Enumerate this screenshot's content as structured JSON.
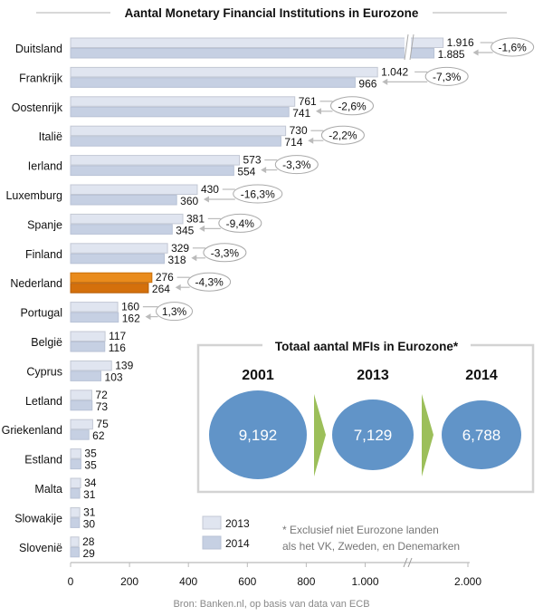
{
  "chart_data": {
    "type": "bar",
    "orientation": "horizontal",
    "title": "Aantal Monetary Financial Institutions in Eurozone",
    "categories": [
      "Duitsland",
      "Frankrijk",
      "Oostenrijk",
      "Italië",
      "Ierland",
      "Luxemburg",
      "Spanje",
      "Finland",
      "Nederland",
      "Portugal",
      "België",
      "Cyprus",
      "Letland",
      "Griekenland",
      "Estland",
      "Malta",
      "Slowakije",
      "Slovenië"
    ],
    "series": [
      {
        "name": "2013",
        "values": [
          1916,
          1042,
          761,
          730,
          573,
          430,
          381,
          329,
          276,
          160,
          117,
          139,
          72,
          75,
          35,
          34,
          31,
          28
        ],
        "value_labels": [
          "1.916",
          "1.042",
          "761",
          "730",
          "573",
          "430",
          "381",
          "329",
          "276",
          "160",
          "117",
          "139",
          "72",
          "75",
          "35",
          "34",
          "31",
          "28"
        ]
      },
      {
        "name": "2014",
        "values": [
          1885,
          966,
          741,
          714,
          554,
          360,
          345,
          318,
          264,
          162,
          116,
          103,
          73,
          62,
          35,
          31,
          30,
          29
        ],
        "value_labels": [
          "1.885",
          "966",
          "741",
          "714",
          "554",
          "360",
          "345",
          "318",
          "264",
          "162",
          "116",
          "103",
          "73",
          "62",
          "35",
          "31",
          "30",
          "29"
        ]
      }
    ],
    "change_labels": [
      "-1,6%",
      "-7,3%",
      "-2,6%",
      "-2,2%",
      "-3,3%",
      "-16,3%",
      "-9,4%",
      "-3,3%",
      "-4,3%",
      "1,3%"
    ],
    "highlight_category": "Nederland",
    "x_ticks": [
      "0",
      "200",
      "400",
      "600",
      "800",
      "1.000",
      "2.000"
    ],
    "x_tick_values": [
      0,
      200,
      400,
      600,
      800,
      1000,
      2000
    ],
    "axis_break": true,
    "xlim": [
      0,
      2000
    ],
    "grid": false,
    "legend_placement": "bottom-right",
    "colors": {
      "2013": "#e0e5f0",
      "2014": "#c6d0e3",
      "highlight_2013": "#e98b1c",
      "highlight_2014": "#d4700c",
      "bubble": "#6194c8",
      "arrow": "#9cbf5a"
    },
    "inset": {
      "title": "Totaal aantal MFIs in Eurozone*",
      "years": [
        "2001",
        "2013",
        "2014"
      ],
      "values": [
        9192,
        7129,
        6788
      ],
      "value_labels": [
        "9,192",
        "7,129",
        "6,788"
      ]
    },
    "footnote_line1": "* Exclusief niet Eurozone landen",
    "footnote_line2": "als het VK, Zweden, en Denemarken",
    "source": "Bron: Banken.nl, op basis van data van ECB"
  }
}
